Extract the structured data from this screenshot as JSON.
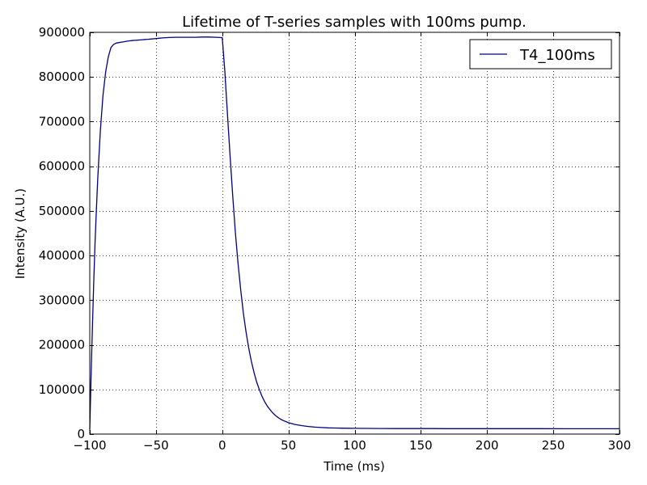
{
  "chart_data": {
    "type": "line",
    "title": "Lifetime of T-series samples with 100ms pump.",
    "xlabel": "Time (ms)",
    "ylabel": "Intensity (A.U.)",
    "xlim": [
      -100,
      300
    ],
    "ylim": [
      0,
      900000
    ],
    "xticks": [
      -100,
      -50,
      0,
      50,
      100,
      150,
      200,
      250,
      300
    ],
    "xtick_labels": [
      "−100",
      "−50",
      "0",
      "50",
      "100",
      "150",
      "200",
      "250",
      "300"
    ],
    "yticks": [
      0,
      100000,
      200000,
      300000,
      400000,
      500000,
      600000,
      700000,
      800000,
      900000
    ],
    "ytick_labels": [
      "0",
      "100000",
      "200000",
      "300000",
      "400000",
      "500000",
      "600000",
      "700000",
      "800000",
      "900000"
    ],
    "grid": true,
    "legend_position": "top-right",
    "series": [
      {
        "name": "T4_100ms",
        "color": "#000080",
        "x": [
          -100,
          -99,
          -98,
          -97,
          -96,
          -95,
          -94,
          -92,
          -90,
          -88,
          -86,
          -84,
          -82,
          -80,
          -78,
          -76,
          -74,
          -72,
          -70,
          -68,
          -66,
          -64,
          -62,
          -60,
          -58,
          -56,
          -54,
          -52,
          -50,
          -45,
          -40,
          -35,
          -30,
          -25,
          -20,
          -15,
          -10,
          -5,
          -2,
          0,
          2,
          4,
          6,
          8,
          10,
          12,
          14,
          16,
          18,
          20,
          22,
          24,
          26,
          28,
          30,
          32,
          34,
          36,
          38,
          40,
          42,
          44,
          46,
          48,
          50,
          55,
          60,
          65,
          70,
          75,
          80,
          85,
          90,
          95,
          100,
          110,
          120,
          130,
          140,
          150,
          160,
          170,
          180,
          190,
          200,
          220,
          240,
          260,
          280,
          300
        ],
        "y": [
          10000,
          130000,
          241000,
          340000,
          427000,
          503000,
          570000,
          680000,
          760000,
          812000,
          845000,
          866000,
          873000,
          876000,
          877000,
          878000,
          879000,
          880000,
          881000,
          881500,
          882000,
          882500,
          883000,
          883500,
          884000,
          884500,
          885000,
          885500,
          886000,
          887500,
          888500,
          889000,
          889000,
          889000,
          889000,
          889500,
          889500,
          889000,
          888500,
          888000,
          813000,
          715000,
          620000,
          530000,
          450000,
          381000,
          322000,
          271000,
          229000,
          193000,
          163000,
          138000,
          117000,
          100000,
          85000,
          73000,
          63000,
          55000,
          48000,
          42000,
          37500,
          33500,
          30500,
          28000,
          25500,
          21500,
          19000,
          17000,
          15500,
          14600,
          14000,
          13500,
          13200,
          13000,
          12800,
          12600,
          12500,
          12400,
          12300,
          12300,
          12250,
          12200,
          12200,
          12150,
          12100,
          12100,
          12050,
          12000,
          12000,
          12000
        ]
      }
    ]
  }
}
